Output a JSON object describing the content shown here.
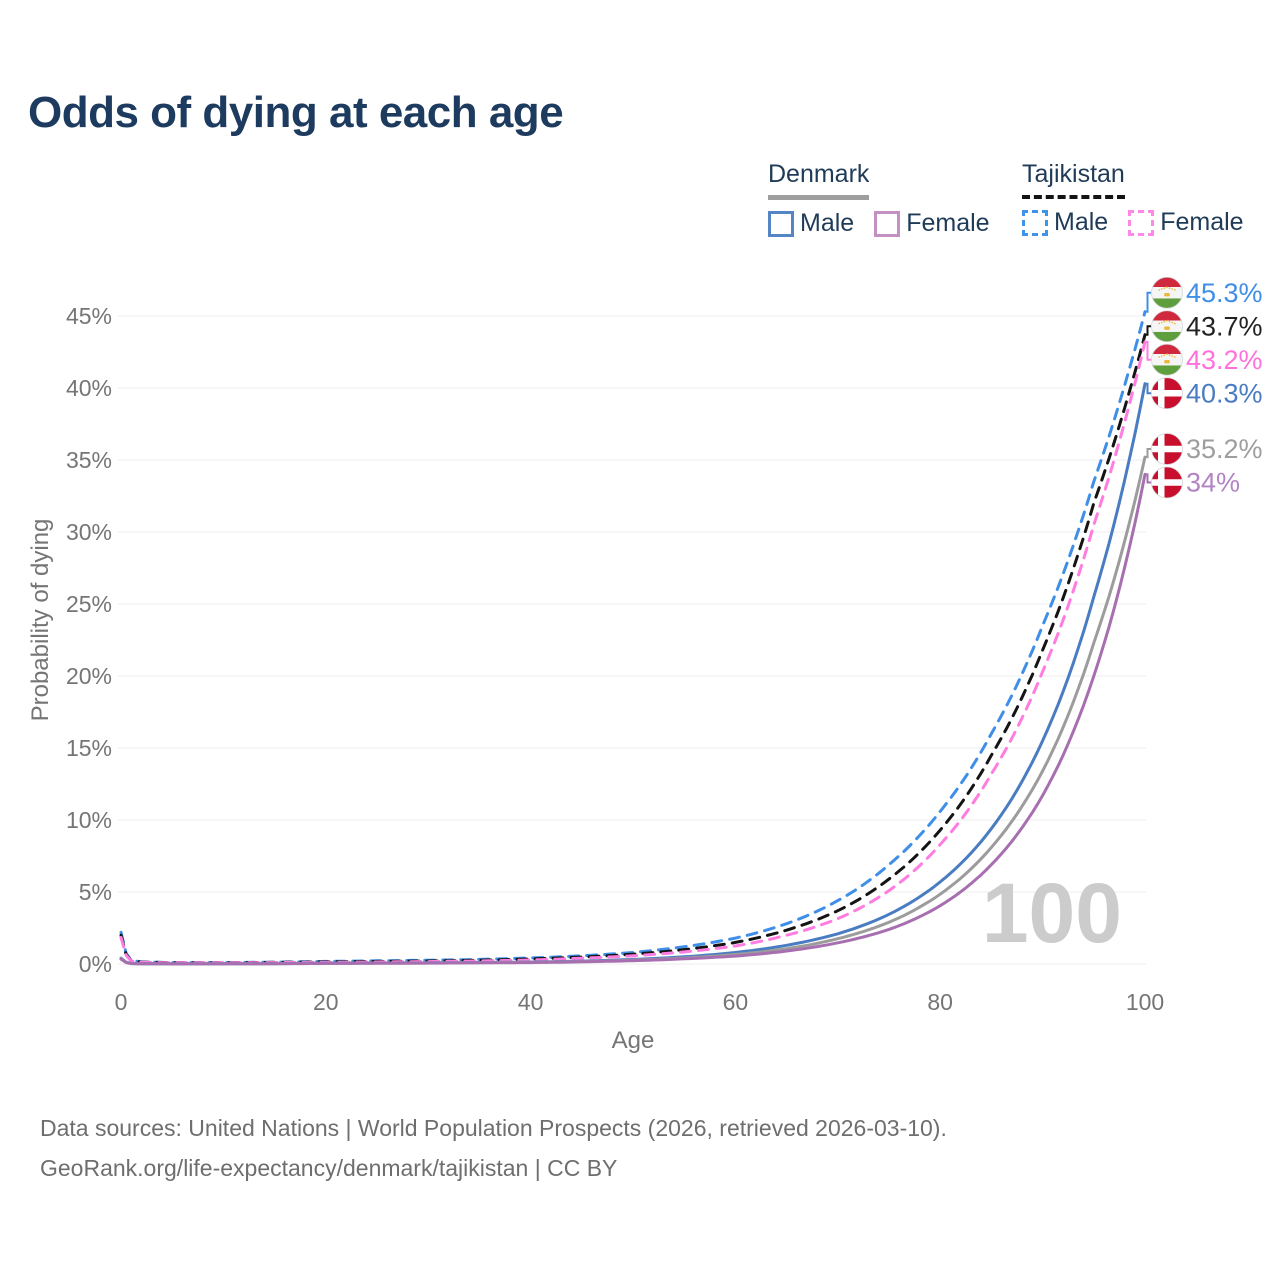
{
  "title": "Odds of dying at each age",
  "legend": {
    "groups": [
      {
        "label": "Denmark",
        "line_style": "solid",
        "line_color": "#9e9e9e",
        "items": [
          {
            "label": "Male",
            "color": "#5585c2"
          },
          {
            "label": "Female",
            "color": "#c48fc2"
          }
        ]
      },
      {
        "label": "Tajikistan",
        "line_style": "dashed",
        "line_color": "#141414",
        "items": [
          {
            "label": "Male",
            "color": "#3f93ea"
          },
          {
            "label": "Female",
            "color": "#ff87e8"
          }
        ]
      }
    ]
  },
  "watermark": "100",
  "footer": {
    "line1": "Data sources: United Nations | World Population Prospects (2026, retrieved 2026-03-10).",
    "line2": "GeoRank.org/life-expectancy/denmark/tajikistan | CC BY"
  },
  "chart_data": {
    "type": "line",
    "title": "Odds of dying at each age",
    "xlabel": "Age",
    "ylabel": "Probability of dying",
    "xlim": [
      0,
      100
    ],
    "ylim_pct": [
      0,
      47
    ],
    "x_ticks": [
      0,
      20,
      40,
      60,
      80,
      100
    ],
    "y_ticks_pct": [
      0,
      5,
      10,
      15,
      20,
      25,
      30,
      35,
      40,
      45
    ],
    "y_tick_suffix": "%",
    "grid": "horizontal",
    "legend_position": "top-right",
    "anchor_ages": [
      0,
      1,
      2,
      5,
      10,
      15,
      20,
      25,
      30,
      35,
      40,
      45,
      50,
      55,
      60,
      65,
      70,
      75,
      80,
      85,
      90,
      95,
      100
    ],
    "series": [
      {
        "name": "Tajikistan Male",
        "country": "Tajikistan",
        "sex": "male",
        "flag": "tajikistan",
        "color": "#3f8fe8",
        "label_color": "#3f8fe8",
        "dashed": true,
        "end_label": "45.3%",
        "values_pct": [
          2.2,
          0.25,
          0.15,
          0.1,
          0.1,
          0.13,
          0.18,
          0.22,
          0.26,
          0.32,
          0.42,
          0.57,
          0.8,
          1.2,
          1.8,
          2.8,
          4.4,
          6.9,
          10.6,
          16.0,
          23.5,
          33.5,
          45.3
        ]
      },
      {
        "name": "Tajikistan Both sexes",
        "country": "Tajikistan",
        "sex": "both",
        "flag": "tajikistan",
        "color": "#141414",
        "label_color": "#222222",
        "dashed": true,
        "end_label": "43.7%",
        "values_pct": [
          2.0,
          0.22,
          0.13,
          0.09,
          0.09,
          0.11,
          0.15,
          0.18,
          0.21,
          0.26,
          0.35,
          0.48,
          0.68,
          1.0,
          1.5,
          2.35,
          3.7,
          5.9,
          9.3,
          14.5,
          21.8,
          32.0,
          43.7
        ]
      },
      {
        "name": "Tajikistan Female",
        "country": "Tajikistan",
        "sex": "female",
        "flag": "tajikistan",
        "color": "#ff7ce0",
        "label_color": "#ff70dd",
        "dashed": true,
        "end_label": "43.2%",
        "values_pct": [
          1.85,
          0.2,
          0.12,
          0.08,
          0.08,
          0.1,
          0.12,
          0.14,
          0.17,
          0.21,
          0.28,
          0.4,
          0.57,
          0.84,
          1.25,
          2.0,
          3.15,
          5.1,
          8.3,
          13.2,
          20.3,
          30.5,
          43.2
        ]
      },
      {
        "name": "Denmark Male",
        "country": "Denmark",
        "sex": "male",
        "flag": "denmark",
        "color": "#4a7cc2",
        "label_color": "#4a7cc4",
        "dashed": false,
        "end_label": "40.3%",
        "values_pct": [
          0.4,
          0.04,
          0.02,
          0.01,
          0.012,
          0.03,
          0.06,
          0.07,
          0.08,
          0.1,
          0.14,
          0.2,
          0.32,
          0.5,
          0.8,
          1.3,
          2.1,
          3.45,
          5.7,
          9.4,
          15.5,
          25.5,
          40.3
        ]
      },
      {
        "name": "Denmark Both sexes",
        "country": "Denmark",
        "sex": "both",
        "flag": "denmark",
        "color": "#9c9c9c",
        "label_color": "#9e9e9e",
        "dashed": false,
        "end_label": "35.2%",
        "values_pct": [
          0.37,
          0.035,
          0.018,
          0.01,
          0.011,
          0.025,
          0.05,
          0.06,
          0.07,
          0.09,
          0.12,
          0.17,
          0.27,
          0.42,
          0.66,
          1.06,
          1.76,
          2.9,
          4.85,
          8.1,
          13.4,
          22.3,
          35.2
        ]
      },
      {
        "name": "Denmark Female",
        "country": "Denmark",
        "sex": "female",
        "flag": "denmark",
        "color": "#a76fb0",
        "label_color": "#b284c4",
        "dashed": false,
        "end_label": "34%",
        "values_pct": [
          0.34,
          0.03,
          0.015,
          0.009,
          0.01,
          0.02,
          0.04,
          0.05,
          0.06,
          0.08,
          0.1,
          0.15,
          0.23,
          0.36,
          0.55,
          0.9,
          1.47,
          2.4,
          4.05,
          6.9,
          11.7,
          20.0,
          34.0
        ]
      }
    ],
    "flag_colors": {
      "denmark": {
        "red": "#c8102e",
        "cross": "#ffffff"
      },
      "tajikistan": {
        "red": "#d0293e",
        "white": "#f5f5f5",
        "green": "#5f9e3c",
        "gold": "#e8b93c"
      }
    }
  }
}
